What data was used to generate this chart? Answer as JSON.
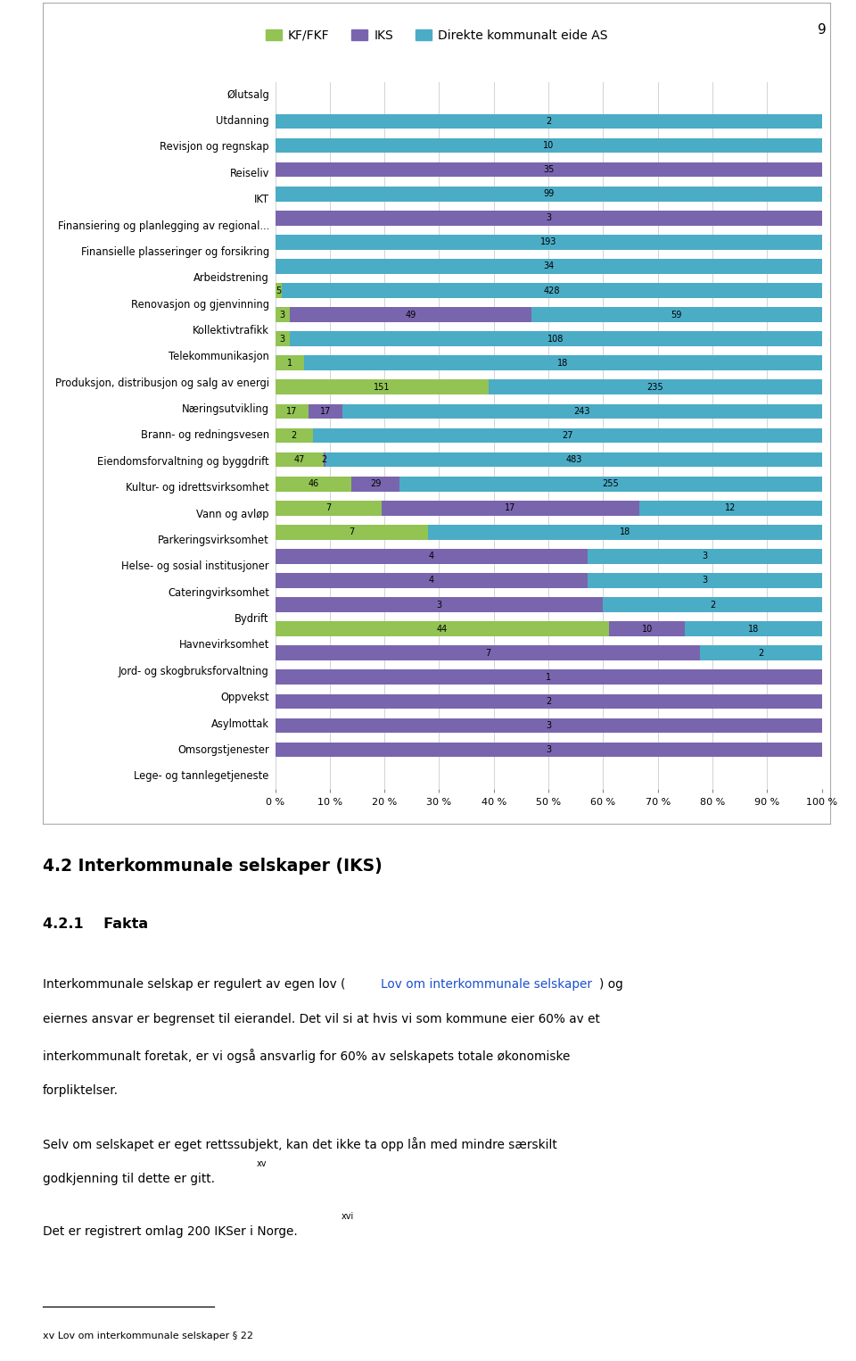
{
  "categories": [
    "Ølutsalg",
    "Utdanning",
    "Revisjon og regnskap",
    "Reiseliv",
    "IKT",
    "Finansiering og planlegging av regional...",
    "Finansielle plasseringer og forsikring",
    "Arbeidstrening",
    "Renovasjon og gjenvinning",
    "Kollektivtrafikk",
    "Telekommunikasjon",
    "Produksjon, distribusjon og salg av energi",
    "Næringsutvikling",
    "Brann- og redningsvesen",
    "Eiendomsforvaltning og byggdrift",
    "Kultur- og idrettsvirksomhet",
    "Vann og avløp",
    "Parkeringsvirksomhet",
    "Helse- og sosial institusjoner",
    "Cateringvirksomhet",
    "Bydrift",
    "Havnevirksomhet",
    "Jord- og skogbruksforvaltning",
    "Oppvekst",
    "Asylmottak",
    "Omsorgstjenester",
    "Lege- og tannlegetjeneste"
  ],
  "kf_values": [
    0,
    0,
    0,
    0,
    0,
    0,
    0,
    5,
    3,
    3,
    1,
    151,
    17,
    2,
    47,
    46,
    7,
    7,
    0,
    0,
    0,
    44,
    0,
    0,
    0,
    0,
    0
  ],
  "iks_values": [
    0,
    0,
    35,
    0,
    3,
    0,
    0,
    0,
    49,
    0,
    0,
    0,
    17,
    0,
    2,
    29,
    17,
    0,
    4,
    4,
    3,
    10,
    7,
    1,
    2,
    3,
    3
  ],
  "as_values": [
    2,
    10,
    0,
    99,
    0,
    193,
    34,
    428,
    59,
    108,
    18,
    235,
    243,
    27,
    483,
    255,
    12,
    18,
    3,
    3,
    2,
    18,
    2,
    0,
    0,
    0,
    0
  ],
  "kf_color": "#92c353",
  "iks_color": "#7965ae",
  "as_color": "#4bacc6",
  "legend_labels": [
    "KF/FKF",
    "IKS",
    "Direkte kommunalt eide AS"
  ],
  "page_number": "9",
  "section_title": "4.2 Interkommunale selskaper (IKS)",
  "subsection_title": "4.2.1    Fakta",
  "body1_pre": "Interkommunale selskap er regulert av egen lov (",
  "body1_link": "Lov om interkommunale selskaper",
  "body1_post": ") og",
  "body1_line2": "eiernes ansvar er begrenset til eierandel. Det vil si at hvis vi som kommune eier 60% av et",
  "body1_line3": "interkommunalt foretak, er vi også ansvarlig for 60% av selskapets totale økonomiske",
  "body1_line4": "forpliktelser.",
  "body2_line1": "Selv om selskapet er eget rettssubjekt, kan det ikke ta opp lån med mindre særskilt",
  "body2_line2": "godkjenning til dette er gitt.",
  "body2_sup": "xv",
  "body3": "Det er registrert omlag 200 IKSer i Norge.",
  "body3_sup": "xvi",
  "footnote": "xv Lov om interkommunale selskaper § 22"
}
